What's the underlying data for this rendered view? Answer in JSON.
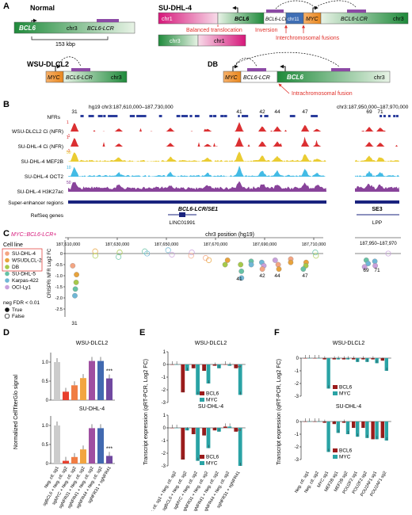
{
  "panel_a": {
    "letter": "A",
    "normal": {
      "title": "Normal",
      "bcl6": "BCL6",
      "chr": "chr3",
      "lcr": "BCL6-LCR",
      "distance": "153 kbp"
    },
    "sudhl4": {
      "title": "SU-DHL-4",
      "chr1": "chr1",
      "bcl6": "BCL6",
      "lcr": "BCL6-LCR",
      "chr11": "chr11",
      "myc": "MYC",
      "lcr2": "BCL6-LCR",
      "chr3": "chr3",
      "chr3b": "chr3",
      "chr1b": "chr1",
      "balanced": "Balanced translocation",
      "inversion": "Inversion",
      "interchrom": "Interchromosomal fusions"
    },
    "wsu": {
      "title": "WSU-DLCL2",
      "myc": "MYC",
      "lcr": "BCL6-LCR",
      "chr": "chr3"
    },
    "db": {
      "title": "DB",
      "myc": "MYC",
      "lcr": "BCL6-LCR",
      "bcl6": "BCL6",
      "chr": "chr3",
      "intrachrom": "Intrachromosomal fusion"
    }
  },
  "panel_b": {
    "letter": "B",
    "coord_left": "hg19 chr3:187,610,000–187,730,000",
    "coord_right": "chr3:187,950,000–187,970,000",
    "nfrs_label": "NFRs",
    "nfr_numbers": [
      "31",
      "41",
      "42",
      "44",
      "47",
      "69",
      "71"
    ],
    "tracks": [
      {
        "label": "WSU-DLCL2 Ci (NFR)",
        "color": "#d7191c",
        "scale_top": "1",
        "scale_bot": "-1"
      },
      {
        "label": "SU-DHL-4 Ci (NFR)",
        "color": "#d7191c",
        "scale_top": "1",
        "scale_bot": "-1"
      },
      {
        "label": "SU-DHL-4 MEF2B",
        "color": "#e8c61c",
        "scale_top": "50",
        "scale_bot": ""
      },
      {
        "label": "SU-DHL-4 OCT2",
        "color": "#2fb4e2",
        "scale_top": "10",
        "scale_bot": ""
      },
      {
        "label": "SU-DHL-4 H3K27ac",
        "color": "#7b2f8f",
        "scale_top": "50",
        "scale_bot": ""
      }
    ],
    "super_enhancer_label": "Super-enhancer regions",
    "se1": "BCL6-LCR/SE1",
    "se3": "SE3",
    "refseq_label": "RefSeq genes",
    "gene1": "LINC01991",
    "gene2": "LPP"
  },
  "panel_c": {
    "letter": "C",
    "heading": "MYC::BCL6-LCR+",
    "axis_title": "chr3 position (hg19)",
    "ticks_left": [
      "187,610,000",
      "187,630,000",
      "187,650,000",
      "187,670,000",
      "187,690,000",
      "187,710,000"
    ],
    "ticks_right": "187,950–187,970",
    "ylabel": "CRISPRi NFR Log2 FC",
    "y_ticks": [
      "0",
      "-0.5",
      "-1.0",
      "-1.5",
      "-2.0",
      "-2.5"
    ],
    "cell_line_title": "Cell line",
    "cell_lines": [
      {
        "name": "SU-DHL-4",
        "color": "#f4a582"
      },
      {
        "name": "WSUDLCL-2",
        "color": "#e8a33c"
      },
      {
        "name": "DB",
        "color": "#a6c94a"
      },
      {
        "name": "SU-DHL-5",
        "color": "#66c2a5"
      },
      {
        "name": "Karpas-422",
        "color": "#6fb7d6"
      },
      {
        "name": "OCI-Ly1",
        "color": "#c9a0dc"
      }
    ],
    "fdr_title": "neg FDR < 0.01",
    "fdr_true": "True",
    "fdr_false": "False",
    "point_labels": [
      "31",
      "41",
      "42",
      "44",
      "47",
      "69",
      "71"
    ]
  },
  "panel_d": {
    "letter": "D",
    "ylabel": "Normalized CellTiterGlo signal",
    "top_title": "WSU-DLCL2",
    "bottom_title": "SU-DHL-4",
    "y_ticks": [
      "0",
      "0.5",
      "1.0"
    ],
    "categories": [
      "Neg. ctl. sg1",
      "sgBCL6 + Neg. ctl. sg2",
      "sgMYC + Neg. ctl. sg2",
      "sgNFR31 + Neg. ctl. sg2",
      "sgNFR41 + Neg. ctl. sg2",
      "sgNFR44 + Neg. ctl. sg2",
      "sgNFR31 + sgNFR41"
    ],
    "colors": [
      "#cccccc",
      "#e8402e",
      "#f07d44",
      "#f2a541",
      "#9f4fa1",
      "#4169b0",
      "#7048a0"
    ],
    "wsu_values": [
      1.0,
      0.22,
      0.39,
      0.58,
      1.03,
      1.03,
      0.57
    ],
    "sudhl4_values": [
      1.0,
      0.07,
      0.17,
      0.37,
      0.93,
      0.93,
      0.2
    ],
    "sig": "***"
  },
  "panel_e": {
    "letter": "E",
    "ylabel": "Transcript expression (qRT-PCR, Log2 FC)",
    "top_title": "WSU-DLCL2",
    "bottom_title": "SU-DHL-4",
    "y_ticks": [
      "1",
      "0",
      "-1",
      "-2",
      "-3"
    ],
    "categories": [
      "Neg. ctl. sg1 + Neg. ctl. sg2",
      "sgBCL6 + Neg. ctl. sg2",
      "sgMYC + Neg. ctl. sg2",
      "sgNFR31 + Neg. ctl. sg2",
      "sgNFR41 + Neg. ctl. sg2",
      "sgNFR44 + Neg. ctl. sg2",
      "sgNFR31 + sgNFR41"
    ],
    "legend": [
      "BCL6",
      "MYC"
    ],
    "wsu": {
      "BCL6": [
        0.0,
        -2.2,
        -0.3,
        -0.5,
        -0.1,
        0.0,
        -0.3
      ],
      "MYC": [
        0.0,
        -0.5,
        -2.4,
        -1.5,
        -0.3,
        -0.1,
        -2.4
      ]
    },
    "sudhl4": {
      "BCL6": [
        0.0,
        -2.5,
        -0.5,
        -0.6,
        -0.2,
        0.1,
        -0.3
      ],
      "MYC": [
        0.0,
        -0.2,
        -2.6,
        -1.6,
        -0.3,
        0.1,
        -3.0
      ]
    },
    "sig": "***"
  },
  "panel_f": {
    "letter": "F",
    "ylabel": "Transcript expression (qRT-PCR, Log2 FC)",
    "top_title": "WSU-DLCL2",
    "bottom_title": "SU-DHL-4",
    "y_ticks": [
      "0",
      "-1",
      "-2",
      "-3"
    ],
    "categories": [
      "Neg. ctl. sg1",
      "Neg. ctl. sg2",
      "MYC sg1",
      "MEF2B sg1",
      "MEF2B sg2",
      "POU2F2 sg1",
      "POU2F2 sg2",
      "POU2AF1 sg1",
      "POU2AF1 sg2"
    ],
    "legend": [
      "BCL6",
      "MYC"
    ],
    "wsu": {
      "BCL6": [
        0.0,
        0.0,
        -0.1,
        -0.1,
        -0.1,
        -0.1,
        -0.1,
        -0.1,
        -0.2
      ],
      "MYC": [
        0.0,
        0.0,
        -2.4,
        -0.1,
        -0.1,
        -0.3,
        -0.3,
        -0.4,
        -1.0
      ]
    },
    "sudhl4": {
      "BCL6": [
        0.0,
        0.0,
        -0.1,
        -0.2,
        -0.1,
        -0.5,
        -0.5,
        -1.4,
        -1.3
      ],
      "MYC": [
        0.0,
        0.0,
        -2.4,
        -0.9,
        -1.0,
        -1.2,
        -1.3,
        -1.4,
        -1.5
      ]
    }
  },
  "chart_data": [
    {
      "type": "bar",
      "title": "WSU-DLCL2",
      "ylabel": "Normalized CellTiterGlo signal",
      "ylim": [
        0,
        1.2
      ],
      "categories": [
        "Neg. ctl. sg1",
        "sgBCL6 + Neg. ctl. sg2",
        "sgMYC + Neg. ctl. sg2",
        "sgNFR31 + Neg. ctl. sg2",
        "sgNFR41 + Neg. ctl. sg2",
        "sgNFR44 + Neg. ctl. sg2",
        "sgNFR31 + sgNFR41"
      ],
      "values": [
        1.0,
        0.22,
        0.39,
        0.58,
        1.03,
        1.03,
        0.57
      ]
    },
    {
      "type": "bar",
      "title": "SU-DHL-4",
      "ylabel": "Normalized CellTiterGlo signal",
      "ylim": [
        0,
        1.2
      ],
      "categories": [
        "Neg. ctl. sg1",
        "sgBCL6 + Neg. ctl. sg2",
        "sgMYC + Neg. ctl. sg2",
        "sgNFR31 + Neg. ctl. sg2",
        "sgNFR41 + Neg. ctl. sg2",
        "sgNFR44 + Neg. ctl. sg2",
        "sgNFR31 + sgNFR41"
      ],
      "values": [
        1.0,
        0.07,
        0.17,
        0.37,
        0.93,
        0.93,
        0.2
      ]
    },
    {
      "type": "bar",
      "title": "WSU-DLCL2",
      "ylabel": "Transcript expression (qRT-PCR, Log2 FC)",
      "ylim": [
        -3,
        1
      ],
      "categories": [
        "Neg. ctl. sg1 + Neg. ctl. sg2",
        "sgBCL6 + Neg. ctl. sg2",
        "sgMYC + Neg. ctl. sg2",
        "sgNFR31 + Neg. ctl. sg2",
        "sgNFR41 + Neg. ctl. sg2",
        "sgNFR44 + Neg. ctl. sg2",
        "sgNFR31 + sgNFR41"
      ],
      "series": [
        {
          "name": "BCL6",
          "values": [
            0.0,
            -2.2,
            -0.3,
            -0.5,
            -0.1,
            0.0,
            -0.3
          ]
        },
        {
          "name": "MYC",
          "values": [
            0.0,
            -0.5,
            -2.4,
            -1.5,
            -0.3,
            -0.1,
            -2.4
          ]
        }
      ]
    },
    {
      "type": "bar",
      "title": "SU-DHL-4",
      "ylabel": "Transcript expression (qRT-PCR, Log2 FC)",
      "ylim": [
        -3,
        1
      ],
      "categories": [
        "Neg. ctl. sg1 + Neg. ctl. sg2",
        "sgBCL6 + Neg. ctl. sg2",
        "sgMYC + Neg. ctl. sg2",
        "sgNFR31 + Neg. ctl. sg2",
        "sgNFR41 + Neg. ctl. sg2",
        "sgNFR44 + Neg. ctl. sg2",
        "sgNFR31 + sgNFR41"
      ],
      "series": [
        {
          "name": "BCL6",
          "values": [
            0.0,
            -2.5,
            -0.5,
            -0.6,
            -0.2,
            0.1,
            -0.3
          ]
        },
        {
          "name": "MYC",
          "values": [
            0.0,
            -0.2,
            -2.6,
            -1.6,
            -0.3,
            0.1,
            -3.0
          ]
        }
      ]
    },
    {
      "type": "bar",
      "title": "WSU-DLCL2",
      "ylabel": "Transcript expression (qRT-PCR, Log2 FC)",
      "ylim": [
        -3,
        0.3
      ],
      "categories": [
        "Neg. ctl. sg1",
        "Neg. ctl. sg2",
        "MYC sg1",
        "MEF2B sg1",
        "MEF2B sg2",
        "POU2F2 sg1",
        "POU2F2 sg2",
        "POU2AF1 sg1",
        "POU2AF1 sg2"
      ],
      "series": [
        {
          "name": "BCL6",
          "values": [
            0.0,
            0.0,
            -0.1,
            -0.1,
            -0.1,
            -0.1,
            -0.1,
            -0.1,
            -0.2
          ]
        },
        {
          "name": "MYC",
          "values": [
            0.0,
            0.0,
            -2.4,
            -0.1,
            -0.1,
            -0.3,
            -0.3,
            -0.4,
            -1.0
          ]
        }
      ]
    },
    {
      "type": "bar",
      "title": "SU-DHL-4",
      "ylabel": "Transcript expression (qRT-PCR, Log2 FC)",
      "ylim": [
        -3,
        0.3
      ],
      "categories": [
        "Neg. ctl. sg1",
        "Neg. ctl. sg2",
        "MYC sg1",
        "MEF2B sg1",
        "MEF2B sg2",
        "POU2F2 sg1",
        "POU2F2 sg2",
        "POU2AF1 sg1",
        "POU2AF1 sg2"
      ],
      "series": [
        {
          "name": "BCL6",
          "values": [
            0.0,
            0.0,
            -0.1,
            -0.2,
            -0.1,
            -0.5,
            -0.5,
            -1.4,
            -1.3
          ]
        },
        {
          "name": "MYC",
          "values": [
            0.0,
            0.0,
            -2.4,
            -0.9,
            -1.0,
            -1.2,
            -1.3,
            -1.4,
            -1.5
          ]
        }
      ]
    }
  ]
}
